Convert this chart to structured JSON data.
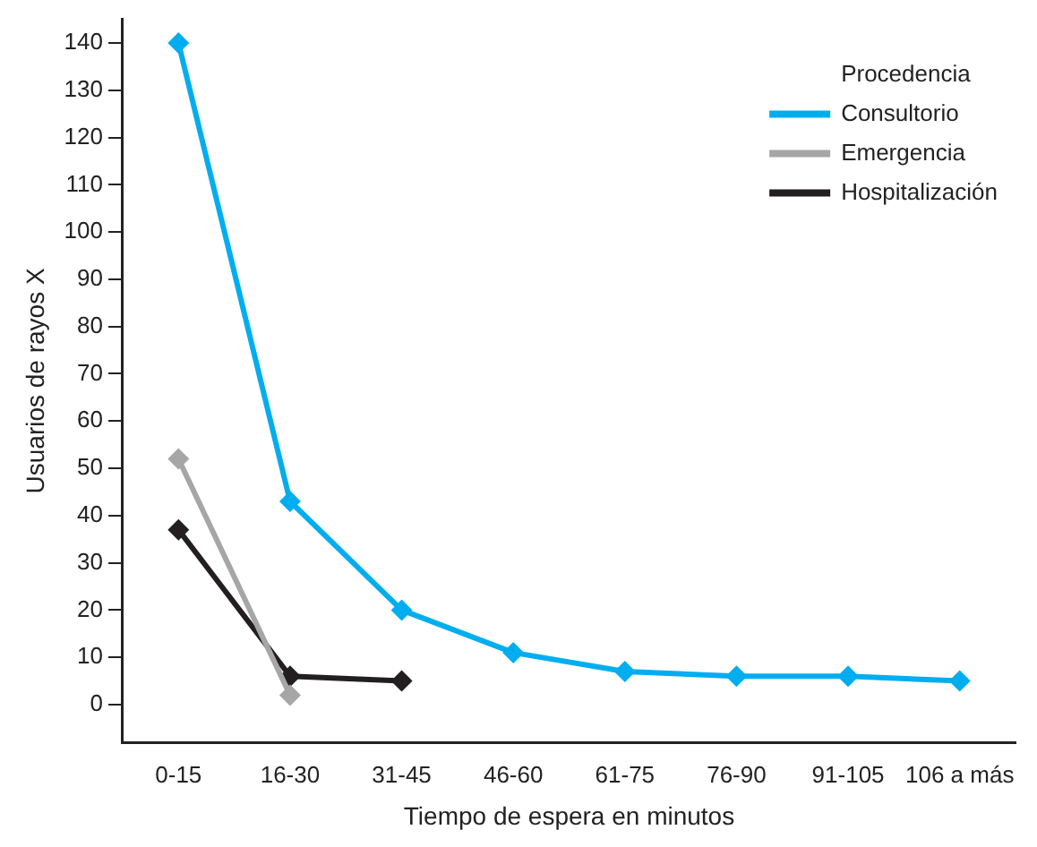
{
  "chart_data": {
    "type": "line",
    "xlabel": "Tiempo de espera en minutos",
    "ylabel": "Usuarios de rayos X",
    "legend_title": "Procedencia",
    "categories": [
      "0-15",
      "16-30",
      "31-45",
      "46-60",
      "61-75",
      "76-90",
      "91-105",
      "106 a más"
    ],
    "series": [
      {
        "name": "Consultorio",
        "color": "#00aeef",
        "values": [
          140,
          43,
          20,
          11,
          7,
          6,
          6,
          5
        ]
      },
      {
        "name": "Emergencia",
        "color": "#a6a6a6",
        "values": [
          52,
          2,
          null,
          null,
          null,
          null,
          null,
          null
        ]
      },
      {
        "name": "Hospitalización",
        "color": "#231f20",
        "values": [
          37,
          6,
          5,
          null,
          null,
          null,
          null,
          null
        ]
      }
    ],
    "ylim": [
      -8,
      145
    ],
    "yticks": [
      0,
      10,
      20,
      30,
      40,
      50,
      60,
      70,
      80,
      90,
      100,
      110,
      120,
      130,
      140
    ],
    "grid": false,
    "legend": "top right",
    "marker": "diamond",
    "line_style": "solid"
  }
}
